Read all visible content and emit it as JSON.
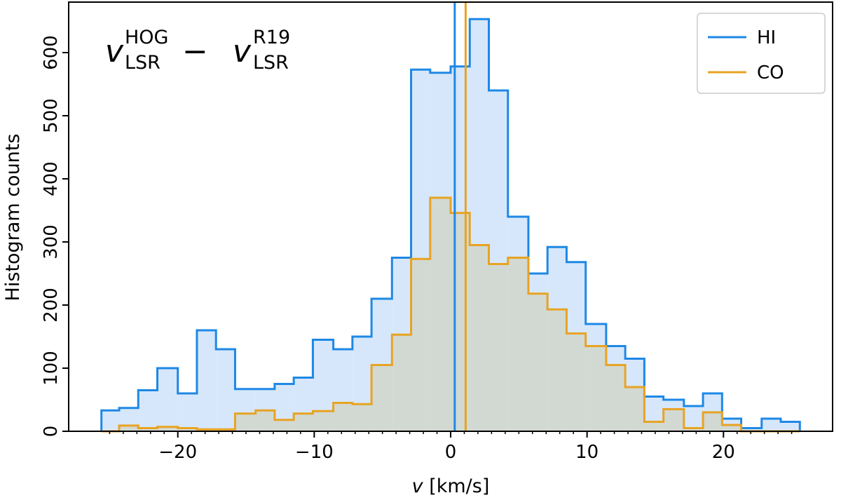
{
  "chart_data": {
    "type": "histogram",
    "xlabel_var": "v",
    "xlabel_unit": " [km/s]",
    "ylabel": "Histogram counts",
    "xlim": [
      -28,
      28
    ],
    "ylim": [
      0,
      680
    ],
    "x_ticks": [
      -20,
      -10,
      0,
      10,
      20
    ],
    "x_tick_labels": [
      "−20",
      "−10",
      "0",
      "10",
      "20"
    ],
    "y_ticks": [
      0,
      100,
      200,
      300,
      400,
      500,
      600
    ],
    "y_tick_labels": [
      "0",
      "100",
      "200",
      "300",
      "400",
      "500",
      "600"
    ],
    "annotation": {
      "v1": "v",
      "sup1": "HOG",
      "sub1": "LSR",
      "minus": "−",
      "v2": "v",
      "sup2": "R19",
      "sub2": "LSR"
    },
    "legend": {
      "position": "top-right"
    },
    "bin_edges": [
      -25.6,
      -24.3,
      -22.9,
      -21.5,
      -20.0,
      -18.6,
      -17.2,
      -15.8,
      -14.3,
      -12.9,
      -11.5,
      -10.1,
      -8.6,
      -7.2,
      -5.8,
      -4.3,
      -2.9,
      -1.5,
      0.0,
      1.4,
      2.8,
      4.2,
      5.7,
      7.1,
      8.5,
      9.9,
      11.4,
      12.8,
      14.2,
      15.6,
      17.1,
      18.5,
      19.9,
      21.3,
      22.8,
      24.2,
      25.6
    ],
    "series": [
      {
        "name": "HI",
        "color": "#1e88e5",
        "fill": "#d6e7fb",
        "counts": [
          33,
          37,
          65,
          100,
          60,
          160,
          130,
          67,
          67,
          75,
          85,
          145,
          130,
          150,
          210,
          275,
          573,
          568,
          578,
          653,
          540,
          340,
          250,
          292,
          268,
          170,
          135,
          115,
          55,
          50,
          40,
          60,
          20,
          5,
          20,
          15
        ],
        "mean_line": 0.3
      },
      {
        "name": "CO",
        "color": "#e8a323",
        "fill": "#d2d9d3",
        "counts": [
          0,
          9,
          5,
          7,
          5,
          3,
          3,
          28,
          33,
          18,
          28,
          32,
          45,
          43,
          105,
          153,
          273,
          370,
          346,
          295,
          265,
          275,
          218,
          193,
          155,
          135,
          105,
          70,
          15,
          35,
          5,
          30,
          10,
          0,
          0,
          0
        ],
        "mean_line": 1.1
      }
    ]
  }
}
